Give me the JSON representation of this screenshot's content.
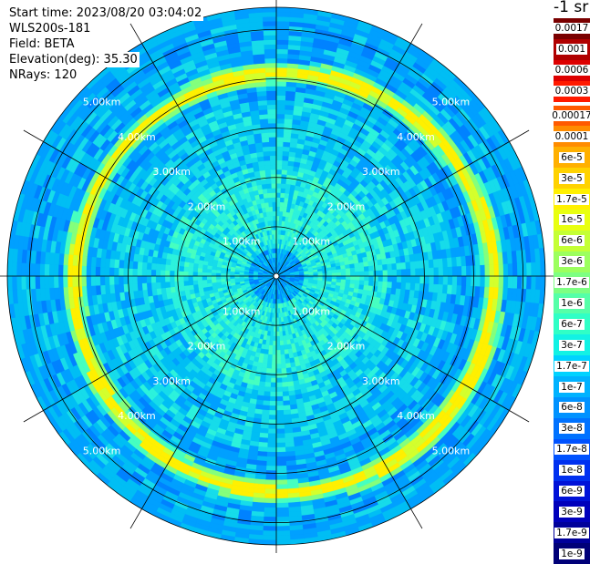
{
  "header": {
    "start_time": "Start time: 2023/08/20 03:04:02",
    "instrument": "WLS200s-181",
    "field": "Field: BETA",
    "elevation": "Elevation(deg): 35.30",
    "nrays": "NRays: 120"
  },
  "colorbar": {
    "unit": "-1 sr",
    "labels": [
      "0.0017",
      "0.001",
      "0.0006",
      "0.0003",
      "0.00017",
      "0.0001",
      "6e-5",
      "3e-5",
      "1.7e-5",
      "1e-5",
      "6e-6",
      "3e-6",
      "1.7e-6",
      "1e-6",
      "6e-7",
      "3e-7",
      "1.7e-7",
      "1e-7",
      "6e-8",
      "3e-8",
      "1.7e-8",
      "1e-8",
      "6e-9",
      "3e-9",
      "1.7e-9",
      "1e-9"
    ],
    "colors": [
      "#7a0000",
      "#b00000",
      "#dd0000",
      "#ff1a00",
      "#ff5a00",
      "#ff8c00",
      "#ffb000",
      "#ffd200",
      "#fff000",
      "#e8ff10",
      "#c4ff35",
      "#9cff5e",
      "#7dff82",
      "#55ffa8",
      "#30ffc6",
      "#12f2e4",
      "#00d2ff",
      "#00b2ff",
      "#0092ff",
      "#0072ff",
      "#0052ff",
      "#0030f0",
      "#0012d8",
      "#0000bb",
      "#00009a",
      "#000078"
    ]
  },
  "ppi": {
    "ring_labels_km": [
      "1.00km",
      "2.00km",
      "3.00km",
      "4.00km",
      "5.00km"
    ],
    "ring_radii_km": [
      1,
      2,
      3,
      4,
      5
    ],
    "max_range_km": 5.45,
    "spokes_deg": [
      0,
      30,
      60,
      90,
      120,
      150,
      180,
      210,
      240,
      270,
      300,
      330
    ],
    "aerosol_layer_ring_km": 4.25
  }
}
